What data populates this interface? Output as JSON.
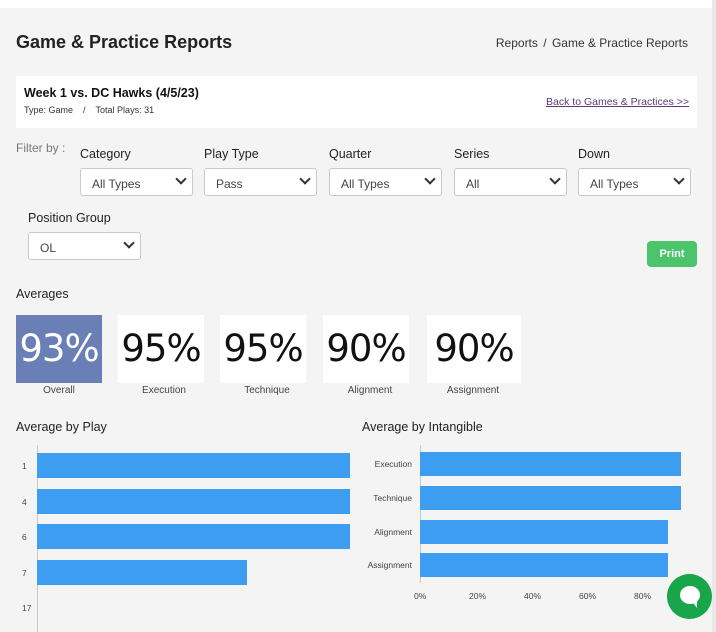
{
  "header": {
    "title": "Game & Practice Reports",
    "breadcrumb": [
      "Reports",
      "/",
      "Game & Practice Reports"
    ]
  },
  "game": {
    "title": "Week 1 vs. DC Hawks (4/5/23)",
    "type": "Type: Game",
    "separator": "/",
    "total_plays": "Total Plays: 31",
    "back_link": "Back to Games & Practices >>"
  },
  "filters": {
    "label": "Filter by :",
    "items": [
      {
        "label": "Category",
        "value": "All Types"
      },
      {
        "label": "Play Type",
        "value": "Pass"
      },
      {
        "label": "Quarter",
        "value": "All Types"
      },
      {
        "label": "Series",
        "value": "All"
      },
      {
        "label": "Down",
        "value": "All Types"
      },
      {
        "label": "Position Group",
        "value": "OL"
      }
    ]
  },
  "print_label": "Print",
  "averages": {
    "title": "Averages",
    "cards": [
      {
        "value": "93%",
        "label": "Overall"
      },
      {
        "value": "95%",
        "label": "Execution"
      },
      {
        "value": "95%",
        "label": "Technique"
      },
      {
        "value": "90%",
        "label": "Alignment"
      },
      {
        "value": "90%",
        "label": "Assignment"
      }
    ]
  },
  "chart_data": [
    {
      "type": "bar",
      "orientation": "horizontal",
      "title": "Average by Play",
      "categories": [
        "1",
        "4",
        "6",
        "7",
        "17"
      ],
      "values": [
        100,
        100,
        100,
        67,
        0
      ],
      "xlim": [
        0,
        100
      ],
      "colors": [
        "#3d9df0"
      ]
    },
    {
      "type": "bar",
      "orientation": "horizontal",
      "title": "Average by Intangible",
      "categories": [
        "Execution",
        "Technique",
        "Alignment",
        "Assignment"
      ],
      "values": [
        95,
        95,
        90,
        90
      ],
      "xlim": [
        0,
        100
      ],
      "xticks": [
        "0%",
        "20%",
        "40%",
        "60%",
        "80%"
      ],
      "colors": [
        "#3d9df0"
      ]
    }
  ]
}
